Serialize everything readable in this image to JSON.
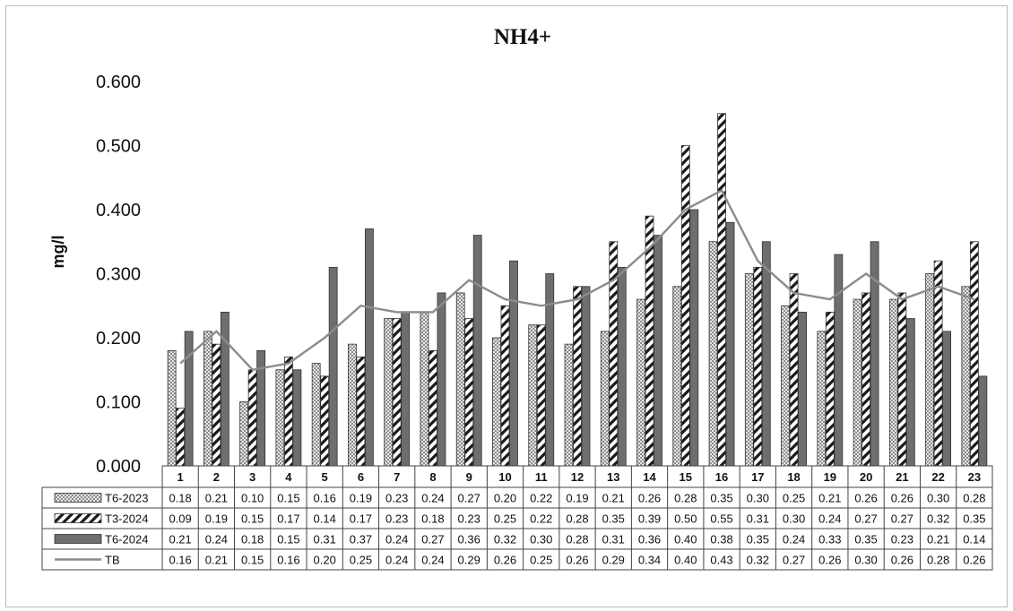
{
  "chart_data": {
    "type": "bar",
    "title": "NH4+",
    "ylabel": "mg/l",
    "xlabel": "",
    "ylim": [
      0,
      0.6
    ],
    "yticks": [
      "0.000",
      "0.100",
      "0.200",
      "0.300",
      "0.400",
      "0.500",
      "0.600"
    ],
    "grid": false,
    "legend": "data-table",
    "categories": [
      "1",
      "2",
      "3",
      "4",
      "5",
      "6",
      "7",
      "8",
      "9",
      "10",
      "11",
      "12",
      "13",
      "14",
      "15",
      "16",
      "17",
      "18",
      "19",
      "20",
      "21",
      "22",
      "23"
    ],
    "series": [
      {
        "name": "T6-2023",
        "kind": "bar",
        "pattern": "crosshatch",
        "color": "#8a8a8a",
        "values": [
          0.18,
          0.21,
          0.1,
          0.15,
          0.16,
          0.19,
          0.23,
          0.24,
          0.27,
          0.2,
          0.22,
          0.19,
          0.21,
          0.26,
          0.28,
          0.35,
          0.3,
          0.25,
          0.21,
          0.26,
          0.26,
          0.3,
          0.28
        ]
      },
      {
        "name": "T3-2024",
        "kind": "bar",
        "pattern": "diagonal",
        "color": "#1a1a1a",
        "values": [
          0.09,
          0.19,
          0.15,
          0.17,
          0.14,
          0.17,
          0.23,
          0.18,
          0.23,
          0.25,
          0.22,
          0.28,
          0.35,
          0.39,
          0.5,
          0.55,
          0.31,
          0.3,
          0.24,
          0.27,
          0.27,
          0.32,
          0.35
        ]
      },
      {
        "name": "T6-2024",
        "kind": "bar",
        "pattern": "solid",
        "color": "#6e6e6e",
        "values": [
          0.21,
          0.24,
          0.18,
          0.15,
          0.31,
          0.37,
          0.24,
          0.27,
          0.36,
          0.32,
          0.3,
          0.28,
          0.31,
          0.36,
          0.4,
          0.38,
          0.35,
          0.24,
          0.33,
          0.35,
          0.23,
          0.21,
          0.14
        ]
      },
      {
        "name": "TB",
        "kind": "line",
        "color": "#8c8c8c",
        "values": [
          0.16,
          0.21,
          0.15,
          0.16,
          0.2,
          0.25,
          0.24,
          0.24,
          0.29,
          0.26,
          0.25,
          0.26,
          0.29,
          0.34,
          0.4,
          0.43,
          0.32,
          0.27,
          0.26,
          0.3,
          0.26,
          0.28,
          0.26
        ]
      }
    ],
    "table_values": [
      [
        "0.18",
        "0.21",
        "0.10",
        "0.15",
        "0.16",
        "0.19",
        "0.23",
        "0.24",
        "0.27",
        "0.20",
        "0.22",
        "0.19",
        "0.21",
        "0.26",
        "0.28",
        "0.35",
        "0.30",
        "0.25",
        "0.21",
        "0.26",
        "0.26",
        "0.30",
        "0.28"
      ],
      [
        "0.09",
        "0.19",
        "0.15",
        "0.17",
        "0.14",
        "0.17",
        "0.23",
        "0.18",
        "0.23",
        "0.25",
        "0.22",
        "0.28",
        "0.35",
        "0.39",
        "0.50",
        "0.55",
        "0.31",
        "0.30",
        "0.24",
        "0.27",
        "0.27",
        "0.32",
        "0.35"
      ],
      [
        "0.21",
        "0.24",
        "0.18",
        "0.15",
        "0.31",
        "0.37",
        "0.24",
        "0.27",
        "0.36",
        "0.32",
        "0.30",
        "0.28",
        "0.31",
        "0.36",
        "0.40",
        "0.38",
        "0.35",
        "0.24",
        "0.33",
        "0.35",
        "0.23",
        "0.21",
        "0.14"
      ],
      [
        "0.16",
        "0.21",
        "0.15",
        "0.16",
        "0.20",
        "0.25",
        "0.24",
        "0.24",
        "0.29",
        "0.26",
        "0.25",
        "0.26",
        "0.29",
        "0.34",
        "0.40",
        "0.43",
        "0.32",
        "0.27",
        "0.26",
        "0.30",
        "0.26",
        "0.28",
        "0.26"
      ]
    ]
  }
}
